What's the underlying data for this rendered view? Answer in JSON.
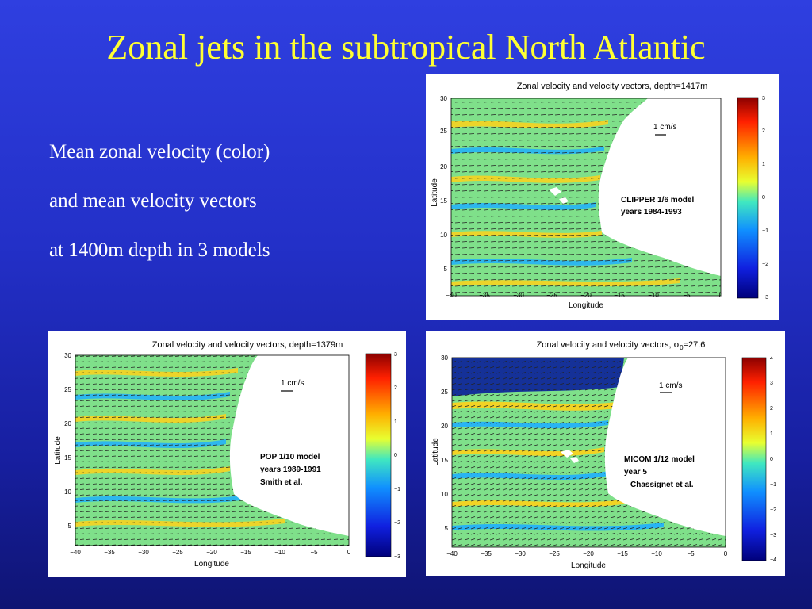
{
  "slide": {
    "title": "Zonal jets in the subtropical North Atlantic",
    "description": [
      "Mean zonal velocity (color)",
      "and mean velocity vectors",
      "at 1400m depth in 3 models"
    ]
  },
  "panels": [
    {
      "id": "clipper",
      "title": "Zonal velocity and velocity vectors, depth=1417m",
      "xlabel": "Longitude",
      "ylabel": "Latitude",
      "x_ticks": [
        "−40",
        "−35",
        "−30",
        "−25",
        "−20",
        "−15",
        "−10",
        "−5",
        "0"
      ],
      "y_ticks": [
        "30",
        "25",
        "20",
        "15",
        "10",
        "5"
      ],
      "colorbar_ticks": [
        "3",
        "2",
        "1",
        "0",
        "−1",
        "−2",
        "−3"
      ],
      "scale_label": "1 cm/s",
      "model_text": [
        "CLIPPER 1/6 model",
        "years 1984-1993"
      ]
    },
    {
      "id": "pop",
      "title": "Zonal velocity and velocity vectors, depth=1379m",
      "xlabel": "Longitude",
      "ylabel": "Latitude",
      "x_ticks": [
        "−40",
        "−35",
        "−30",
        "−25",
        "−20",
        "−15",
        "−10",
        "−5",
        "0"
      ],
      "y_ticks": [
        "30",
        "25",
        "20",
        "15",
        "10",
        "5"
      ],
      "colorbar_ticks": [
        "3",
        "2",
        "1",
        "0",
        "−1",
        "−2",
        "−3"
      ],
      "scale_label": "1 cm/s",
      "model_text": [
        "POP 1/10 model",
        "years 1989-1991",
        "Smith et al."
      ]
    },
    {
      "id": "micom",
      "title_main": "Zonal velocity and velocity vectors, ",
      "title_sigma": "σ",
      "title_sub": "0",
      "title_value": "=27.6",
      "xlabel": "Longitude",
      "ylabel": "Latitude",
      "x_ticks": [
        "−40",
        "−35",
        "−30",
        "−25",
        "−20",
        "−15",
        "−10",
        "−5",
        "0"
      ],
      "y_ticks": [
        "30",
        "25",
        "20",
        "15",
        "10",
        "5"
      ],
      "colorbar_ticks": [
        "4",
        "3",
        "2",
        "1",
        "0",
        "−1",
        "−2",
        "−3",
        "−4"
      ],
      "scale_label": "1 cm/s",
      "model_text": [
        "MICOM 1/12 model",
        "year 5",
        "Chassignet et al."
      ]
    }
  ],
  "colors": {
    "title": "#ffff33",
    "ocean": "#7fe08a",
    "jet_warm": "#ffd21a",
    "jet_cold": "#1fb0ff",
    "strong_west": "#0a1f9a",
    "land": "#ffffff"
  }
}
